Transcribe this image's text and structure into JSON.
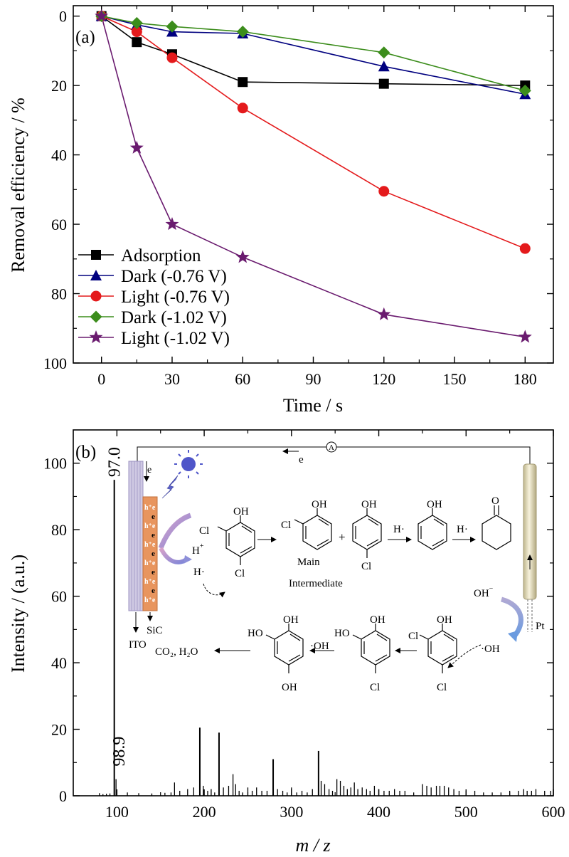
{
  "chart_data": [
    {
      "type": "line",
      "panel_label": "(a)",
      "xlabel": "Time / s",
      "ylabel": "Removal efficiency / %",
      "xlim": [
        -12,
        192
      ],
      "ylim": [
        100,
        -3
      ],
      "y_inverted": true,
      "x_ticks": [
        "0",
        "30",
        "60",
        "90",
        "120",
        "150",
        "180"
      ],
      "y_ticks": [
        "0",
        "20",
        "40",
        "60",
        "80",
        "100"
      ],
      "legend_position": "bottom-left",
      "series": [
        {
          "name": "Adsorption",
          "marker": "square",
          "color": "#000000",
          "x": [
            0,
            15,
            30,
            60,
            120,
            180
          ],
          "values": [
            0,
            7.5,
            11,
            19,
            19.5,
            20
          ]
        },
        {
          "name": "Dark (-0.76 V)",
          "marker": "triangle",
          "color": "#00007f",
          "x": [
            0,
            15,
            30,
            60,
            120,
            180
          ],
          "values": [
            0,
            2.5,
            4.5,
            5,
            14.5,
            22.5
          ]
        },
        {
          "name": "Light (-0.76 V)",
          "marker": "circle",
          "color": "#e41a1c",
          "x": [
            0,
            15,
            30,
            60,
            120,
            180
          ],
          "values": [
            0,
            4.5,
            12,
            26.5,
            50.5,
            67
          ]
        },
        {
          "name": "Dark (-1.02 V)",
          "marker": "diamond",
          "color": "#3c8d1c",
          "x": [
            0,
            15,
            30,
            60,
            120,
            180
          ],
          "values": [
            0,
            2,
            3,
            4.5,
            10.5,
            21.5
          ]
        },
        {
          "name": "Light (-1.02 V)",
          "marker": "star",
          "color": "#6a1b6f",
          "x": [
            0,
            15,
            30,
            60,
            120,
            180
          ],
          "values": [
            0,
            38,
            60,
            69.5,
            86,
            92.5
          ]
        }
      ]
    },
    {
      "type": "bar",
      "panel_label": "(b)",
      "xlabel": "m / z",
      "ylabel": "Intensity / (a.u.)",
      "xlim": [
        50,
        600
      ],
      "ylim": [
        0,
        110
      ],
      "x_ticks": [
        "100",
        "200",
        "300",
        "400",
        "500",
        "600"
      ],
      "y_ticks": [
        "0",
        "20",
        "40",
        "60",
        "80",
        "100"
      ],
      "peak_labels": [
        {
          "text": "97.0",
          "x": 97,
          "y": 95
        },
        {
          "text": "98.9",
          "x": 99,
          "y": 5
        }
      ],
      "peaks": {
        "x": [
          80,
          84,
          88,
          92,
          97,
          99,
          112,
          125,
          140,
          155,
          162,
          166,
          172,
          181,
          188,
          195,
          199,
          204,
          208,
          212,
          217,
          222,
          228,
          233,
          236,
          240,
          244,
          250,
          255,
          260,
          266,
          272,
          279,
          284,
          290,
          295,
          300,
          306,
          312,
          318,
          324,
          331,
          334,
          338,
          343,
          347,
          352,
          356,
          360,
          364,
          368,
          372,
          376,
          381,
          386,
          390,
          395,
          400,
          406,
          412,
          418,
          424,
          430,
          440,
          450,
          455,
          460,
          466,
          470,
          475,
          480,
          486,
          492,
          500,
          510,
          520,
          530,
          540,
          550,
          560,
          566,
          570,
          575,
          580,
          590,
          597
        ],
        "values": [
          0.8,
          0.5,
          0.6,
          0.7,
          95,
          5,
          1,
          0.8,
          0.7,
          0.9,
          1,
          4,
          1.5,
          2,
          2.5,
          20.5,
          3,
          1.5,
          2,
          1,
          19,
          2.5,
          3,
          6.5,
          3.5,
          1.5,
          1,
          2.5,
          1.5,
          2.5,
          1.5,
          1.5,
          11,
          2,
          1.5,
          1,
          2.5,
          1,
          1.5,
          1,
          2,
          13.5,
          4.5,
          3.5,
          2,
          1.5,
          5,
          4.5,
          3,
          2,
          2.5,
          4,
          2,
          2.5,
          2,
          1.5,
          3,
          2,
          1.5,
          1.5,
          2,
          1.5,
          1.5,
          1,
          3.5,
          3,
          2.5,
          3,
          3,
          3,
          2.5,
          2,
          1.5,
          1.5,
          1.5,
          1,
          1,
          1,
          1.5,
          1.5,
          2,
          1.5,
          1.5,
          2,
          1.5,
          1.5
        ]
      }
    }
  ],
  "inset": {
    "ammeter": "A",
    "electron_top": "e",
    "electron": "e",
    "h_plus_e": "h⁺e",
    "left_e": "e",
    "h_plus": "H",
    "h_plus_sup": "+",
    "h_radical": "H·",
    "sic": "SiC",
    "ito": "ITO",
    "pt": "Pt",
    "oh_minus": "OH",
    "oh_minus_sup": "−",
    "oh_radical_right": "·OH",
    "oh_radical_mid": "·OH",
    "products": "CO₂, H₂O",
    "main": "Main",
    "intermediate": "Intermediate",
    "plus": "+",
    "oh": "OH",
    "ho": "HO",
    "cl": "Cl",
    "o": "O",
    "h_dot_1": "H·",
    "h_dot_2": "H·"
  },
  "colors": {
    "adsorption": "#000000",
    "dark_076": "#00007f",
    "light_076": "#e41a1c",
    "dark_102": "#3c8d1c",
    "light_102": "#6a1b6f",
    "sic_layer": "#e8955e",
    "ito_layer": "#c9c3de",
    "pt_electrode": "#e9e2c2",
    "sun": "#4f56c9"
  }
}
